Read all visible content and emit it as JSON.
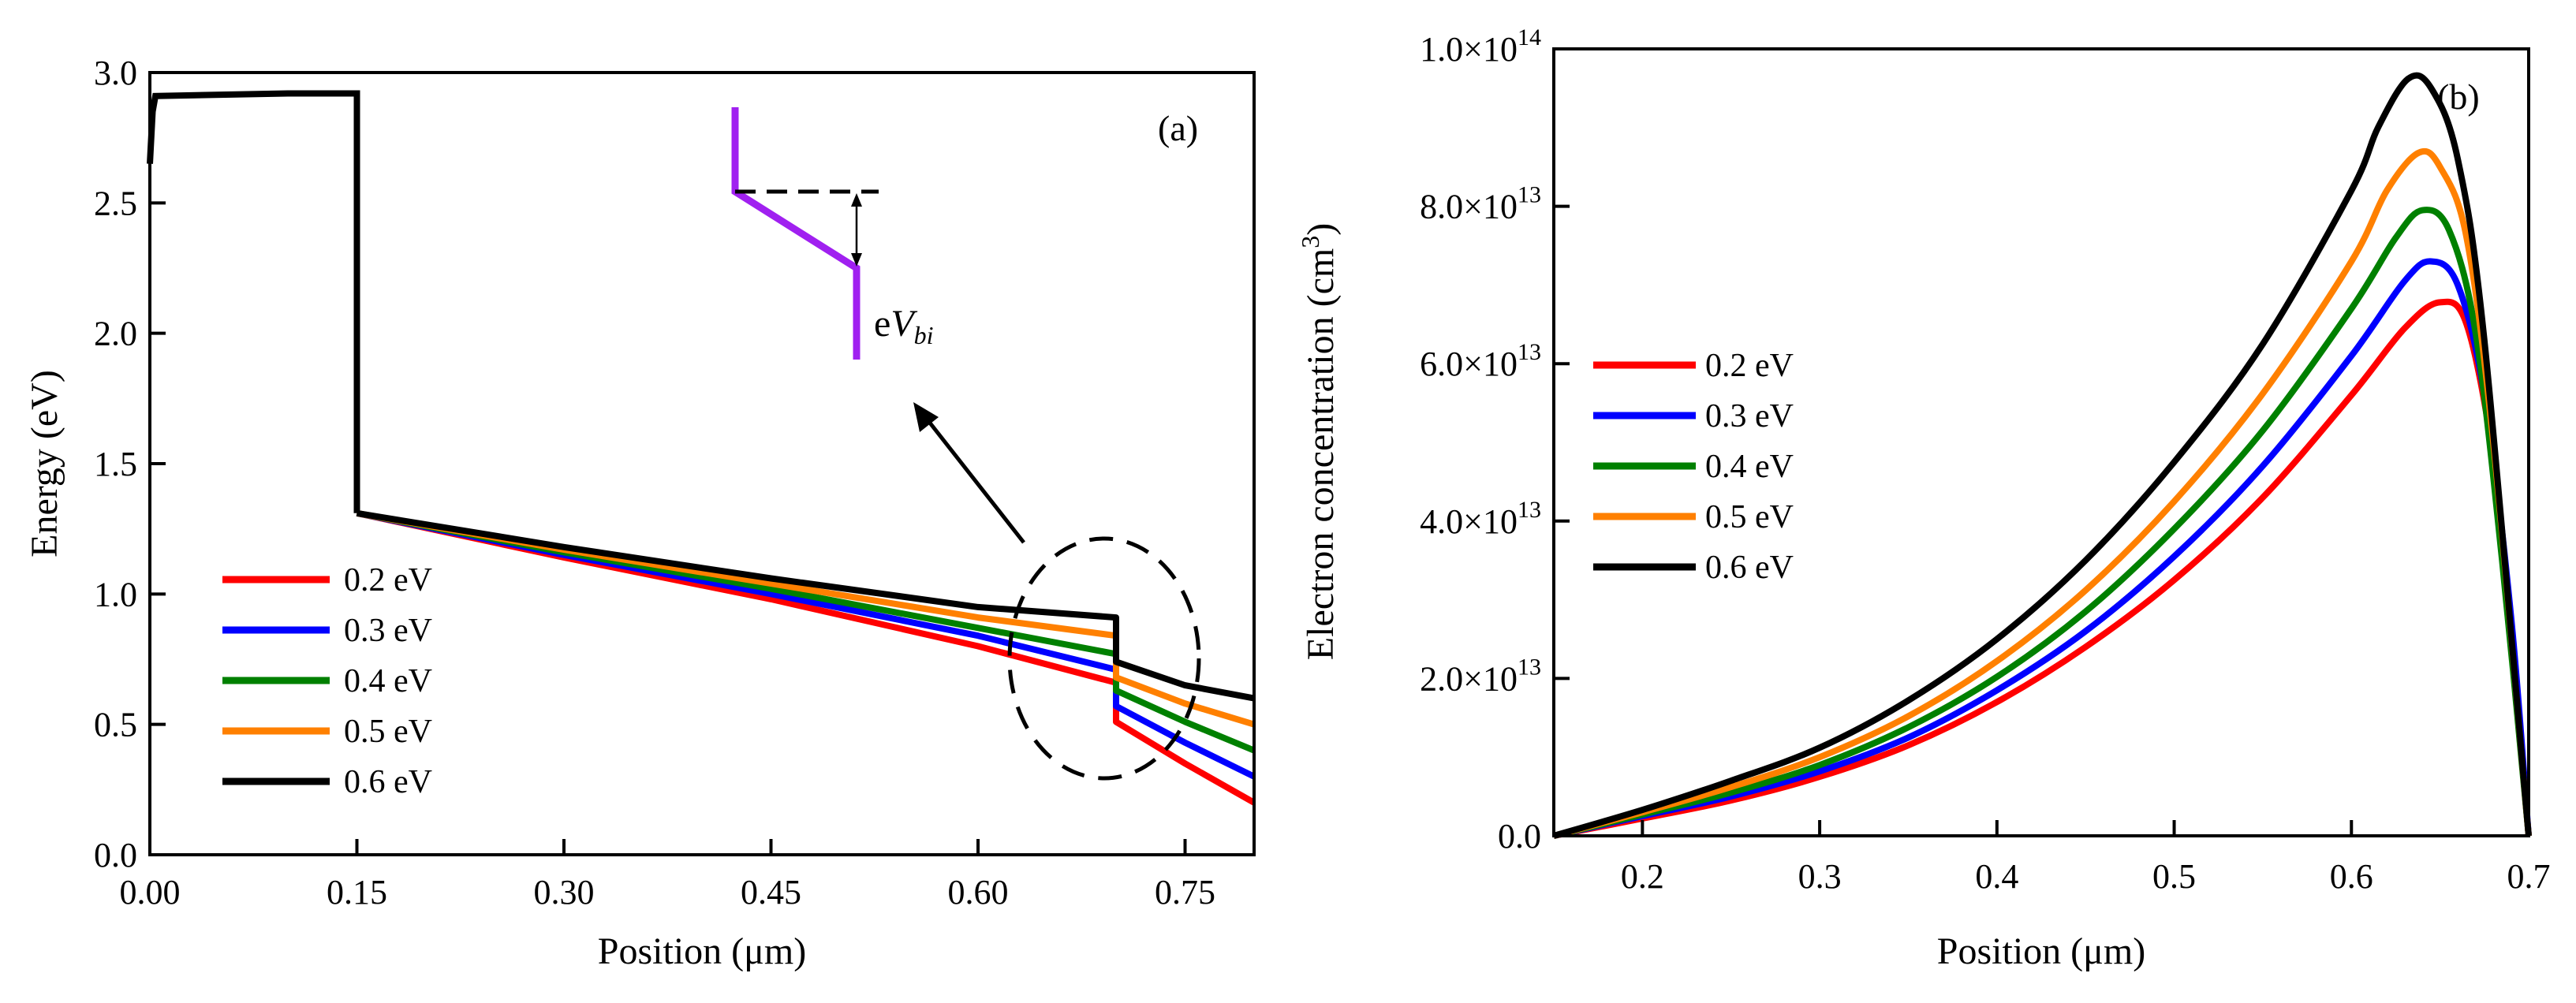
{
  "figure": {
    "panels": [
      "(a)",
      "(b)"
    ]
  },
  "chart_data": [
    {
      "type": "line",
      "panel_label": "(a)",
      "title": "",
      "xlabel": "Position (μm)",
      "ylabel": "Energy (eV)",
      "xlim": [
        0.0,
        0.8
      ],
      "ylim": [
        0.0,
        3.0
      ],
      "xticks": [
        0.0,
        0.15,
        0.3,
        0.45,
        0.6,
        0.75
      ],
      "xtick_labels": [
        "0.00",
        "0.15",
        "0.30",
        "0.45",
        "0.60",
        "0.75"
      ],
      "yticks": [
        0.0,
        0.5,
        1.0,
        1.5,
        2.0,
        2.5,
        3.0
      ],
      "ytick_labels": [
        "0.0",
        "0.5",
        "1.0",
        "1.5",
        "2.0",
        "2.5",
        "3.0"
      ],
      "legend_position": "lower-left",
      "common_segment": {
        "x": [
          0.0,
          0.002,
          0.004,
          0.1,
          0.15,
          0.15
        ],
        "y": [
          2.65,
          2.85,
          2.91,
          2.92,
          2.92,
          1.31
        ]
      },
      "series": [
        {
          "name": "0.2 eV",
          "color": "#ff0000",
          "x": [
            0.15,
            0.3,
            0.45,
            0.6,
            0.7,
            0.7,
            0.75,
            0.8
          ],
          "y": [
            1.31,
            1.14,
            0.98,
            0.8,
            0.66,
            0.51,
            0.35,
            0.2
          ]
        },
        {
          "name": "0.3 eV",
          "color": "#0000ff",
          "x": [
            0.15,
            0.3,
            0.45,
            0.6,
            0.7,
            0.7,
            0.75,
            0.8
          ],
          "y": [
            1.31,
            1.15,
            1.0,
            0.84,
            0.71,
            0.57,
            0.43,
            0.3
          ]
        },
        {
          "name": "0.4 eV",
          "color": "#008000",
          "x": [
            0.15,
            0.3,
            0.45,
            0.6,
            0.7,
            0.7,
            0.75,
            0.8
          ],
          "y": [
            1.31,
            1.16,
            1.02,
            0.87,
            0.77,
            0.63,
            0.51,
            0.4
          ]
        },
        {
          "name": "0.5 eV",
          "color": "#ff8000",
          "x": [
            0.15,
            0.3,
            0.45,
            0.6,
            0.7,
            0.7,
            0.75,
            0.8
          ],
          "y": [
            1.31,
            1.17,
            1.04,
            0.91,
            0.84,
            0.68,
            0.58,
            0.5
          ]
        },
        {
          "name": "0.6 eV",
          "color": "#000000",
          "x": [
            0.15,
            0.3,
            0.45,
            0.6,
            0.7,
            0.7,
            0.75,
            0.8
          ],
          "y": [
            1.31,
            1.18,
            1.06,
            0.95,
            0.91,
            0.74,
            0.65,
            0.6
          ]
        }
      ],
      "annotations": {
        "inset_label_prefix": "e",
        "inset_label_var": "V",
        "inset_label_sub": "bi",
        "inset_color": "#a020f0",
        "highlight": "dashed ellipse around the step at 0.70 μm with an arrow pointing to the band-offset inset"
      }
    },
    {
      "type": "line",
      "panel_label": "(b)",
      "title": "",
      "xlabel": "Position (μm)",
      "ylabel_text": "Electron concentration (cm",
      "ylabel_sup": "3",
      "ylabel_close": ")",
      "xlim": [
        0.15,
        0.7
      ],
      "ylim": [
        0.0,
        100000000000000.0
      ],
      "xticks": [
        0.2,
        0.3,
        0.4,
        0.5,
        0.6,
        0.7
      ],
      "xtick_labels": [
        "0.2",
        "0.3",
        "0.4",
        "0.5",
        "0.6",
        "0.7"
      ],
      "yticks": [
        0.0,
        20000000000000.0,
        40000000000000.0,
        60000000000000.0,
        80000000000000.0,
        100000000000000.0
      ],
      "ytick_labels": [
        {
          "mant": "0.0",
          "exp": ""
        },
        {
          "mant": "2.0×10",
          "exp": "13"
        },
        {
          "mant": "4.0×10",
          "exp": "13"
        },
        {
          "mant": "6.0×10",
          "exp": "13"
        },
        {
          "mant": "8.0×10",
          "exp": "13"
        },
        {
          "mant": "1.0×10",
          "exp": "14"
        }
      ],
      "legend_position": "center-left",
      "series": [
        {
          "name": "0.2 eV",
          "color": "#ff0000",
          "x": [
            0.15,
            0.2,
            0.25,
            0.3,
            0.35,
            0.4,
            0.45,
            0.5,
            0.55,
            0.6,
            0.63,
            0.65,
            0.665,
            0.68,
            0.69,
            0.7
          ],
          "y": [
            0.0,
            2200000000000.0,
            4500000000000.0,
            7500000000000.0,
            11500000000000.0,
            17000000000000.0,
            24000000000000.0,
            32500000000000.0,
            43000000000000.0,
            56000000000000.0,
            64500000000000.0,
            67800000000000.0,
            65000000000000.0,
            48000000000000.0,
            25000000000000.0,
            0.0
          ]
        },
        {
          "name": "0.3 eV",
          "color": "#0000ff",
          "x": [
            0.15,
            0.2,
            0.25,
            0.3,
            0.35,
            0.4,
            0.45,
            0.5,
            0.55,
            0.6,
            0.63,
            0.645,
            0.66,
            0.675,
            0.69,
            0.7
          ],
          "y": [
            0.0,
            2500000000000.0,
            5000000000000.0,
            8200000000000.0,
            12500000000000.0,
            18500000000000.0,
            26000000000000.0,
            35500000000000.0,
            47000000000000.0,
            61000000000000.0,
            70500000000000.0,
            73000000000000.0,
            70000000000000.0,
            56000000000000.0,
            28000000000000.0,
            0.0
          ]
        },
        {
          "name": "0.4 eV",
          "color": "#008000",
          "x": [
            0.15,
            0.2,
            0.25,
            0.3,
            0.35,
            0.4,
            0.45,
            0.5,
            0.55,
            0.6,
            0.625,
            0.64,
            0.655,
            0.67,
            0.685,
            0.7
          ],
          "y": [
            0.0,
            2700000000000.0,
            5500000000000.0,
            9000000000000.0,
            13800000000000.0,
            20200000000000.0,
            28500000000000.0,
            39000000000000.0,
            51500000000000.0,
            67000000000000.0,
            76000000000000.0,
            79500000000000.0,
            77000000000000.0,
            64000000000000.0,
            35000000000000.0,
            0.0
          ]
        },
        {
          "name": "0.5 eV",
          "color": "#ff8000",
          "x": [
            0.15,
            0.2,
            0.25,
            0.3,
            0.35,
            0.4,
            0.45,
            0.5,
            0.55,
            0.6,
            0.62,
            0.638,
            0.65,
            0.665,
            0.68,
            0.7
          ],
          "y": [
            0.0,
            3000000000000.0,
            6200000000000.0,
            10000000000000.0,
            15200000000000.0,
            22200000000000.0,
            31200000000000.0,
            42500000000000.0,
            56200000000000.0,
            73000000000000.0,
            82000000000000.0,
            86800000000000.0,
            85000000000000.0,
            76000000000000.0,
            50000000000000.0,
            0.0
          ]
        },
        {
          "name": "0.6 eV",
          "color": "#000000",
          "x": [
            0.15,
            0.2,
            0.25,
            0.3,
            0.35,
            0.4,
            0.45,
            0.5,
            0.55,
            0.6,
            0.615,
            0.632,
            0.645,
            0.66,
            0.675,
            0.7
          ],
          "y": [
            0.0,
            3300000000000.0,
            7000000000000.0,
            11200000000000.0,
            17200000000000.0,
            25000000000000.0,
            35000000000000.0,
            47500000000000.0,
            62500000000000.0,
            82000000000000.0,
            90000000000000.0,
            96200000000000.0,
            95000000000000.0,
            86000000000000.0,
            63000000000000.0,
            0.0
          ]
        }
      ]
    }
  ]
}
